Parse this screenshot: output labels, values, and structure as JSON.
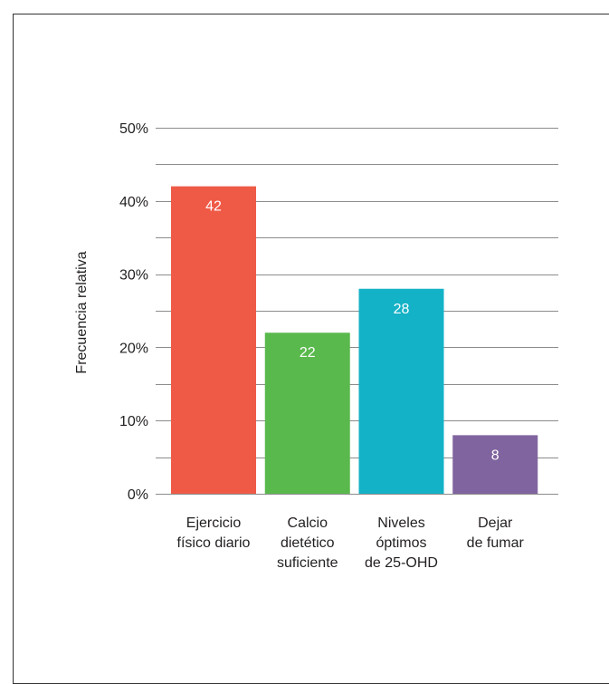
{
  "chart_data": {
    "type": "bar",
    "categories": [
      [
        "Ejercicio",
        "físico diario"
      ],
      [
        "Calcio",
        "dietético",
        "suficiente"
      ],
      [
        "Niveles",
        "óptimos",
        "de 25-OHD"
      ],
      [
        "Dejar",
        "de fumar"
      ]
    ],
    "values": [
      42,
      22,
      28,
      8
    ],
    "data_labels": [
      "42",
      "22",
      "28",
      "8"
    ],
    "colors": [
      "#ef5a47",
      "#5ab94d",
      "#14b2c6",
      "#80649f"
    ],
    "title": "",
    "xlabel": "",
    "ylabel": "Frecuencia relativa",
    "ylim": [
      0,
      50
    ],
    "yticks": [
      0,
      10,
      20,
      30,
      40,
      50
    ],
    "ytick_labels": [
      "0%",
      "10%",
      "20%",
      "30%",
      "40%",
      "50%"
    ],
    "minor_gridlines": [
      5,
      15,
      25,
      35,
      45
    ],
    "grid": true,
    "grid_color": "#8c8c8c",
    "legend": "none"
  }
}
